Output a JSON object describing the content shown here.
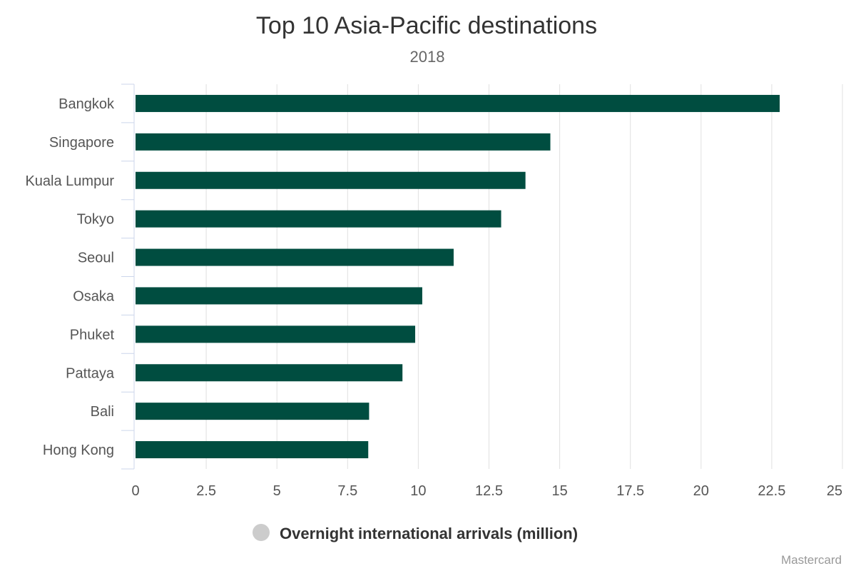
{
  "chart_data": {
    "type": "bar",
    "orientation": "horizontal",
    "title": "Top 10 Asia-Pacific destinations",
    "subtitle": "2018",
    "categories": [
      "Bangkok",
      "Singapore",
      "Kuala Lumpur",
      "Tokyo",
      "Seoul",
      "Osaka",
      "Phuket",
      "Pattaya",
      "Bali",
      "Hong Kong"
    ],
    "series": [
      {
        "name": "Overnight international arrivals (million)",
        "values": [
          22.78,
          14.67,
          13.79,
          12.93,
          11.25,
          10.14,
          9.89,
          9.44,
          8.26,
          8.23
        ],
        "color": "#004d40"
      }
    ],
    "xlim": [
      0,
      25
    ],
    "ticks": [
      "0",
      "2.5",
      "5",
      "7.5",
      "10",
      "12.5",
      "15",
      "17.5",
      "20",
      "22.5",
      "25"
    ],
    "grid": true,
    "legend_position": "bottom-center",
    "legend_marker_color": "#cccccc",
    "credit": "Mastercard"
  }
}
